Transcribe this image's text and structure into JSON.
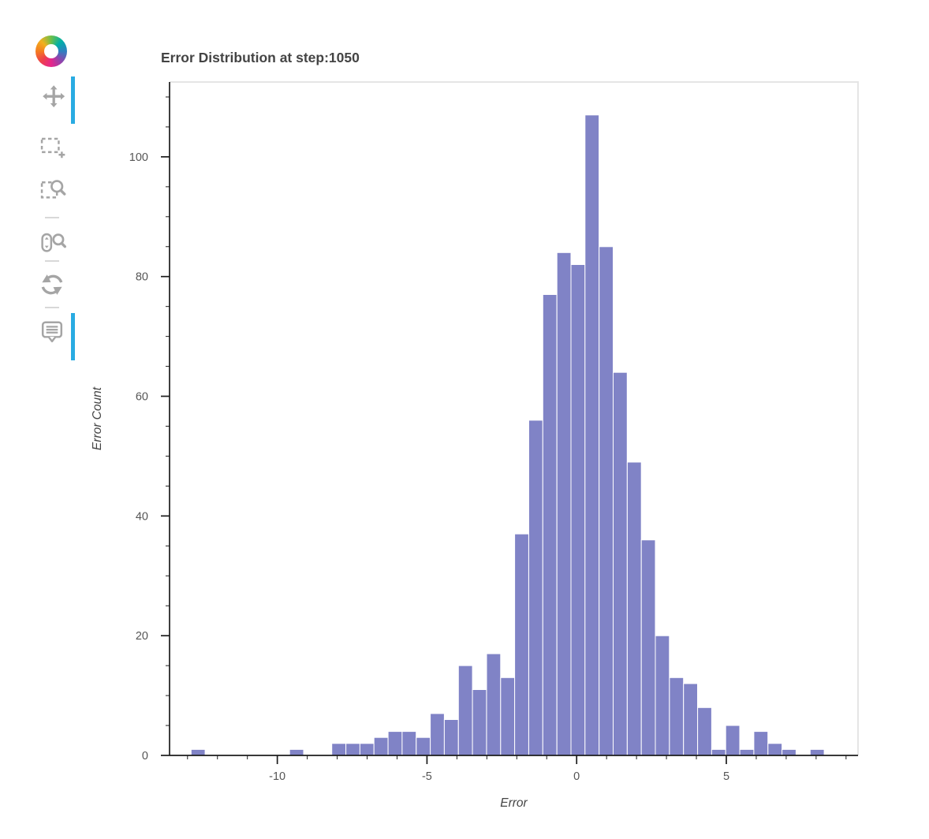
{
  "toolbar": {
    "active_color": "#29abe2",
    "icon_color": "#a5a5a5",
    "tools": [
      {
        "name": "pan",
        "icon": "pan-icon",
        "active": true,
        "sep_before": false
      },
      {
        "name": "box-select",
        "icon": "box-select-icon",
        "active": false,
        "sep_before": false
      },
      {
        "name": "box-zoom",
        "icon": "box-zoom-icon",
        "active": false,
        "sep_before": false
      },
      {
        "name": "wheel-zoom",
        "icon": "wheel-zoom-icon",
        "active": false,
        "sep_before": true
      },
      {
        "name": "reset",
        "icon": "reset-icon",
        "active": false,
        "sep_before": true
      },
      {
        "name": "hover",
        "icon": "hover-icon",
        "active": true,
        "sep_before": true
      }
    ]
  },
  "chart_data": {
    "type": "bar",
    "subtype": "histogram",
    "title": "Error Distribution at step:1050",
    "xlabel": "Error",
    "ylabel": "Error Count",
    "bin_start": -12.88,
    "bin_width": 0.47,
    "counts": [
      1,
      0,
      0,
      0,
      0,
      0,
      0,
      1,
      0,
      0,
      2,
      2,
      2,
      3,
      4,
      4,
      3,
      7,
      6,
      15,
      11,
      17,
      13,
      37,
      56,
      77,
      84,
      82,
      107,
      85,
      64,
      49,
      36,
      20,
      13,
      12,
      8,
      1,
      5,
      1,
      4,
      2,
      1,
      0,
      1
    ],
    "x_range": [
      -13.6,
      9.4
    ],
    "y_range": [
      0,
      112.5
    ],
    "x_major_ticks": [
      -10,
      -5,
      0,
      5
    ],
    "x_minor_step": 1,
    "y_major_ticks": [
      0,
      20,
      40,
      60,
      80,
      100
    ],
    "y_minor_step": 5,
    "grid": false,
    "legend": null,
    "bar_fill": "#8083c6",
    "bar_stroke": "#ffffff",
    "axis_color": "#1c1c1c",
    "frame_color": "#e5e5e5",
    "tick_label_color": "#555555",
    "label_color": "#444444"
  }
}
